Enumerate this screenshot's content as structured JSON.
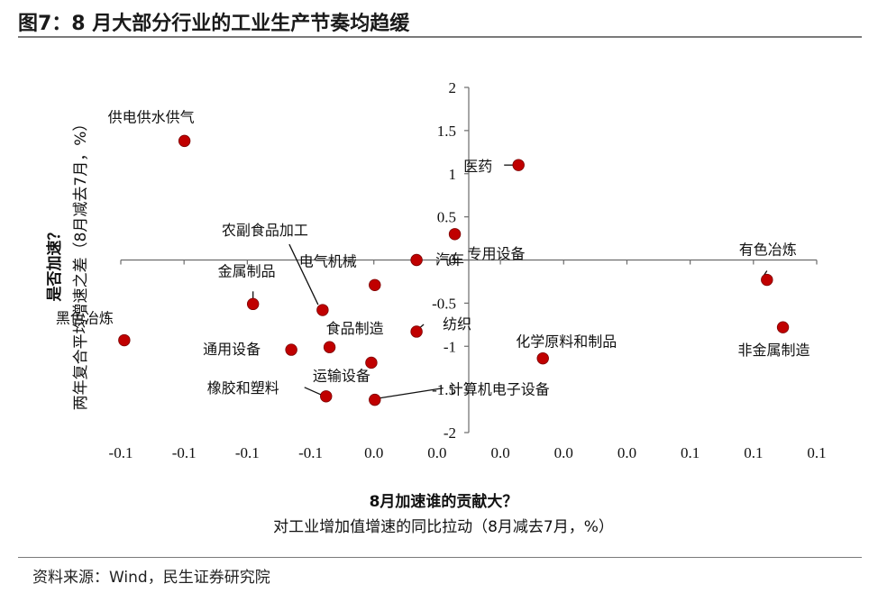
{
  "header": {
    "title": "图7：8 月大部分行业的工业生产节奏均趋缓"
  },
  "footer": {
    "source": "资料来源：Wind，民生证券研究院"
  },
  "chart_data": {
    "type": "scatter",
    "xlabel": "8月加速谁的贡献大？",
    "xlabel_sub": "对工业增加值增速的同比拉动（8月减去7月，%）",
    "ylabel": "是否加速？",
    "ylabel_sub": "两年复合平均增速之差（8月减去7月，%）",
    "xlim": [
      -0.1,
      0.1
    ],
    "ylim": [
      -2,
      2
    ],
    "x_tick_labels": [
      "-0.1",
      "-0.1",
      "-0.1",
      "-0.1",
      "0.0",
      "0.0",
      "0.0",
      "0.0",
      "0.0",
      "0.1",
      "0.1",
      "0.1"
    ],
    "y_ticks": [
      -2,
      -1.5,
      -1,
      -0.5,
      0,
      0.5,
      1,
      1.5,
      2
    ],
    "y_tick_labels": [
      "-2",
      "-1.5",
      "-1",
      "-0.5",
      "0",
      "0.5",
      "1",
      "1.5",
      "2"
    ],
    "point_color": "#c00000",
    "points": [
      {
        "name": "供电供水供气",
        "x": -0.0817,
        "y": 1.38
      },
      {
        "name": "医药",
        "x": 0.0143,
        "y": 1.1
      },
      {
        "name": "专用设备",
        "x": -0.004,
        "y": 0.3
      },
      {
        "name": "汽车",
        "x": -0.015,
        "y": 0.0
      },
      {
        "name": "有色冶炼",
        "x": 0.0857,
        "y": -0.23
      },
      {
        "name": "电气机械",
        "x": -0.027,
        "y": -0.29
      },
      {
        "name": "金属制品",
        "x": -0.062,
        "y": -0.51
      },
      {
        "name": "农副食品加工",
        "x": -0.042,
        "y": -0.58
      },
      {
        "name": "非金属制造",
        "x": 0.0903,
        "y": -0.78
      },
      {
        "name": "纺织",
        "x": -0.015,
        "y": -0.83
      },
      {
        "name": "黑色冶炼",
        "x": -0.099,
        "y": -0.93
      },
      {
        "name": "食品制造",
        "x": -0.04,
        "y": -1.01
      },
      {
        "name": "通用设备",
        "x": -0.051,
        "y": -1.04
      },
      {
        "name": "化学原料和制品",
        "x": 0.0213,
        "y": -1.14
      },
      {
        "name": "运输设备",
        "x": -0.028,
        "y": -1.19
      },
      {
        "name": "橡胶和塑料",
        "x": -0.041,
        "y": -1.58
      },
      {
        "name": "计算机电子设备",
        "x": -0.027,
        "y": -1.62
      }
    ]
  }
}
